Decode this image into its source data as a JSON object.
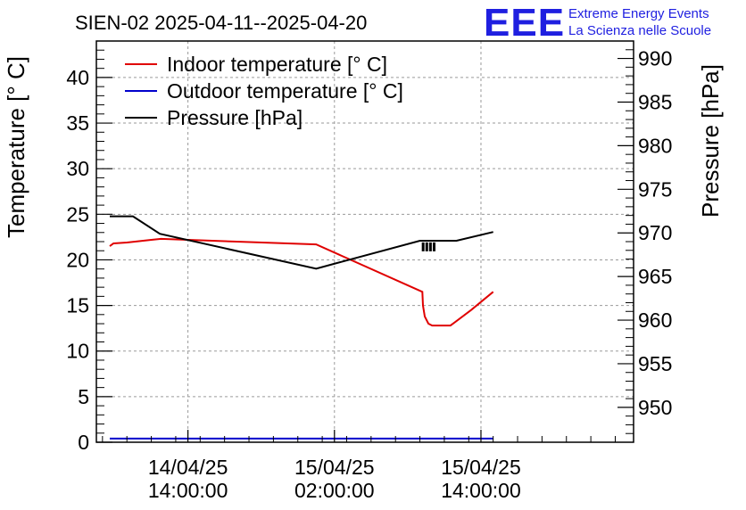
{
  "title": "SIEN-02 2025-04-11--2025-04-20",
  "logo": {
    "mark": "EEE",
    "line1": "Extreme Energy Events",
    "line2": "La Scienza nelle Scuole",
    "color": "#1f1fe0"
  },
  "chart_data": {
    "type": "line",
    "title": "SIEN-02 2025-04-11--2025-04-20",
    "ylabel": "Temperature [° C]",
    "y2label": "Pressure [hPa]",
    "xlabel": "",
    "grid": true,
    "xlim_hours": [
      -7.5,
      36.5
    ],
    "x_origin_note": "hours relative to 14/04/25 14:00:00",
    "ylim": [
      0,
      44
    ],
    "y2lim": [
      946,
      992
    ],
    "yticks": [
      0,
      5,
      10,
      15,
      20,
      25,
      30,
      35,
      40
    ],
    "y2ticks": [
      950,
      955,
      960,
      965,
      970,
      975,
      980,
      985,
      990
    ],
    "xticks": [
      {
        "hour": 0,
        "date": "14/04/25",
        "time": "14:00:00"
      },
      {
        "hour": 12,
        "date": "15/04/25",
        "time": "02:00:00"
      },
      {
        "hour": 24,
        "date": "15/04/25",
        "time": "14:00:00"
      }
    ],
    "legend_position": "top-left",
    "series": [
      {
        "name": "Indoor temperature [° C]",
        "color": "#e00000",
        "axis": "left",
        "x": [
          -6.4,
          -6.1,
          -5.0,
          -3.0,
          -2.2,
          0.0,
          4.0,
          10.5,
          19.2,
          19.25,
          19.4,
          19.7,
          20.0,
          21.5,
          23.2,
          25.0
        ],
        "y": [
          21.5,
          21.8,
          21.9,
          22.2,
          22.3,
          22.2,
          22.0,
          21.7,
          16.5,
          15.0,
          13.8,
          13.0,
          12.8,
          12.8,
          14.5,
          16.5
        ]
      },
      {
        "name": "Outdoor temperature [° C]",
        "color": "#0000cc",
        "axis": "left",
        "x": [
          -6.4,
          25.0
        ],
        "y": [
          0.4,
          0.4
        ]
      },
      {
        "name": "Pressure [hPa]",
        "color": "#000000",
        "axis": "right",
        "x": [
          -6.4,
          -4.5,
          -2.3,
          10.5,
          19.0,
          22.0,
          25.0
        ],
        "y": [
          971.9,
          971.9,
          969.9,
          965.9,
          969.1,
          969.1,
          970.1
        ]
      }
    ]
  }
}
